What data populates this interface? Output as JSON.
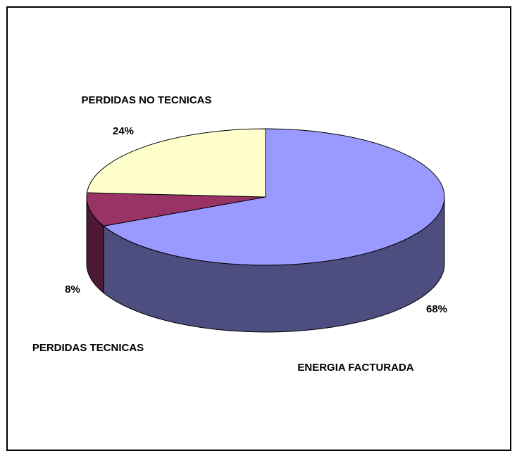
{
  "chart_data": {
    "type": "pie",
    "categories": [
      "ENERGIA FACTURADA",
      "PERDIDAS TECNICAS",
      "PERDIDAS NO TECNICAS"
    ],
    "values": [
      68,
      8,
      24
    ],
    "value_labels": [
      "68%",
      "8%",
      "24%"
    ],
    "colors": [
      "#9999ff",
      "#993366",
      "#ffffcc"
    ]
  }
}
